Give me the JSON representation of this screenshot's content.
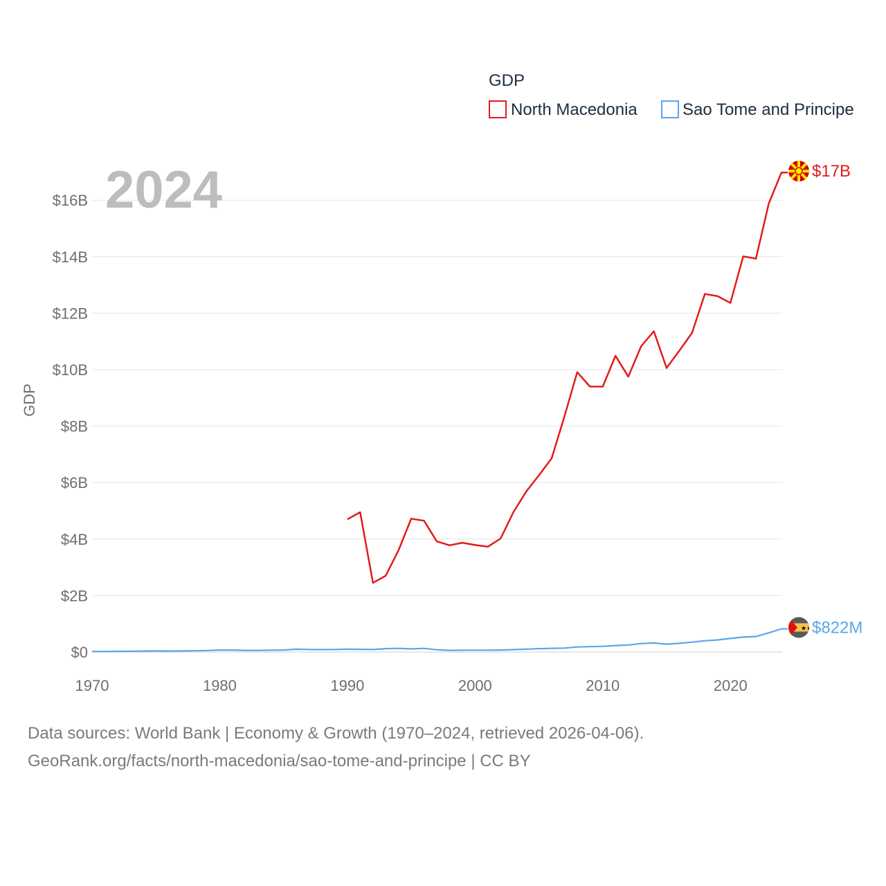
{
  "chart_data": {
    "type": "line",
    "title": "GDP",
    "year_label": "2024",
    "ylabel": "GDP",
    "xlabel": "",
    "xlim": [
      1970,
      2024
    ],
    "ylim": [
      0,
      17000000000
    ],
    "x_ticks": [
      "1970",
      "1980",
      "1990",
      "2000",
      "2010",
      "2020"
    ],
    "y_ticks": [
      "$0",
      "$2B",
      "$4B",
      "$6B",
      "$8B",
      "$10B",
      "$12B",
      "$14B",
      "$16B"
    ],
    "series": [
      {
        "name": "North Macedonia",
        "color": "#e31a1c",
        "end_label": "$17B",
        "flag_icon": "north-macedonia-flag-icon",
        "x": [
          1990,
          1991,
          1992,
          1993,
          1994,
          1995,
          1996,
          1997,
          1998,
          1999,
          2000,
          2001,
          2002,
          2003,
          2004,
          2005,
          2006,
          2007,
          2008,
          2009,
          2010,
          2011,
          2012,
          2013,
          2014,
          2015,
          2016,
          2017,
          2018,
          2019,
          2020,
          2021,
          2022,
          2023,
          2024
        ],
        "values": [
          4.7,
          4.95,
          2.45,
          2.7,
          3.6,
          4.72,
          4.65,
          3.92,
          3.78,
          3.87,
          3.79,
          3.73,
          4.02,
          4.95,
          5.68,
          6.26,
          6.86,
          8.34,
          9.91,
          9.4,
          9.4,
          10.49,
          9.75,
          10.82,
          11.36,
          10.06,
          10.67,
          11.31,
          12.68,
          12.6,
          12.36,
          14.01,
          13.93,
          15.88,
          16.98
        ]
      },
      {
        "name": "Sao Tome and Principe",
        "color": "#5aa6e8",
        "end_label": "$822M",
        "flag_icon": "sao-tome-and-principe-flag-icon",
        "x": [
          1970,
          1971,
          1972,
          1973,
          1974,
          1975,
          1976,
          1977,
          1978,
          1979,
          1980,
          1981,
          1982,
          1983,
          1984,
          1985,
          1986,
          1987,
          1988,
          1989,
          1990,
          1991,
          1992,
          1993,
          1994,
          1995,
          1996,
          1997,
          1998,
          1999,
          2000,
          2001,
          2002,
          2003,
          2004,
          2005,
          2006,
          2007,
          2008,
          2009,
          2010,
          2011,
          2012,
          2013,
          2014,
          2015,
          2016,
          2017,
          2018,
          2019,
          2020,
          2021,
          2022,
          2023,
          2024
        ],
        "values": [
          0.02,
          0.02,
          0.025,
          0.03,
          0.035,
          0.04,
          0.035,
          0.04,
          0.045,
          0.055,
          0.07,
          0.07,
          0.06,
          0.06,
          0.065,
          0.07,
          0.1,
          0.09,
          0.085,
          0.09,
          0.1,
          0.095,
          0.09,
          0.12,
          0.13,
          0.11,
          0.13,
          0.08,
          0.06,
          0.065,
          0.065,
          0.066,
          0.07,
          0.085,
          0.1,
          0.12,
          0.13,
          0.14,
          0.18,
          0.19,
          0.2,
          0.23,
          0.25,
          0.3,
          0.32,
          0.28,
          0.31,
          0.35,
          0.4,
          0.43,
          0.48,
          0.53,
          0.55,
          0.68,
          0.822
        ]
      }
    ],
    "source_lines": [
      "Data sources: World Bank | Economy & Growth (1970–2024, retrieved 2026-04-06).",
      "GeoRank.org/facts/north-macedonia/sao-tome-and-principe | CC BY"
    ]
  }
}
